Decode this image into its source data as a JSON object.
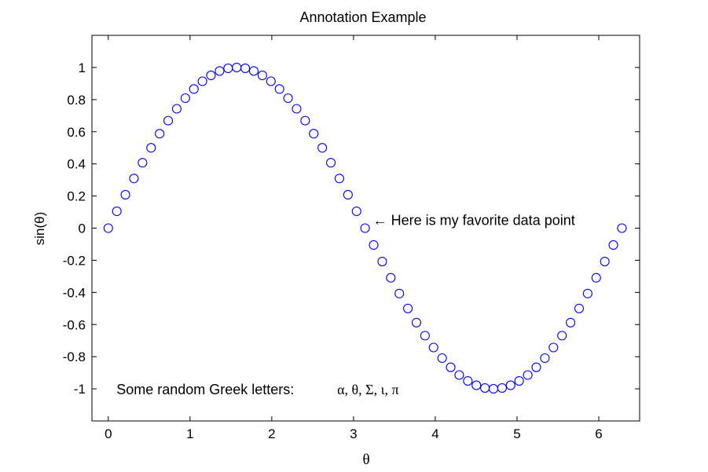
{
  "chart_data": {
    "type": "scatter",
    "title": "Annotation Example",
    "xlabel": "θ",
    "ylabel": "sin(θ)",
    "xlim": [
      -0.2,
      6.5
    ],
    "ylim": [
      -1.2,
      1.2
    ],
    "xticks": [
      "0",
      "1",
      "2",
      "3",
      "4",
      "5",
      "6"
    ],
    "yticks": [
      "-1",
      "-0.8",
      "-0.6",
      "-0.4",
      "-0.2",
      "0",
      "0.2",
      "0.4",
      "0.6",
      "0.8",
      "1"
    ],
    "grid": false,
    "marker": "circle",
    "marker_color": "#0000ff",
    "series": [
      {
        "x": [
          0,
          0.1047,
          0.2094,
          0.3142,
          0.4189,
          0.5236,
          0.6283,
          0.733,
          0.8378,
          0.9425,
          1.0472,
          1.1519,
          1.2566,
          1.3614,
          1.4661,
          1.5708,
          1.6755,
          1.7802,
          1.885,
          1.9897,
          2.0944,
          2.1991,
          2.3038,
          2.4086,
          2.5133,
          2.618,
          2.7227,
          2.8274,
          2.9322,
          3.0369,
          3.1416,
          3.2463,
          3.351,
          3.4558,
          3.5605,
          3.6652,
          3.7699,
          3.8746,
          3.9794,
          4.0841,
          4.1888,
          4.2935,
          4.3982,
          4.5029,
          4.6077,
          4.7124,
          4.8171,
          4.9218,
          5.0265,
          5.1313,
          5.236,
          5.3407,
          5.4454,
          5.5501,
          5.6549,
          5.7596,
          5.8643,
          5.969,
          6.0737,
          6.1785,
          6.2832
        ],
        "y": [
          0.0,
          0.105,
          0.208,
          0.309,
          0.407,
          0.5,
          0.588,
          0.669,
          0.743,
          0.809,
          0.866,
          0.914,
          0.951,
          0.978,
          0.995,
          1.0,
          0.995,
          0.978,
          0.951,
          0.914,
          0.866,
          0.809,
          0.743,
          0.669,
          0.588,
          0.5,
          0.407,
          0.309,
          0.208,
          0.105,
          0.0,
          -0.105,
          -0.208,
          -0.309,
          -0.407,
          -0.5,
          -0.588,
          -0.669,
          -0.743,
          -0.809,
          -0.866,
          -0.914,
          -0.951,
          -0.978,
          -0.995,
          -1.0,
          -0.995,
          -0.978,
          -0.951,
          -0.914,
          -0.866,
          -0.809,
          -0.743,
          -0.669,
          -0.588,
          -0.5,
          -0.407,
          -0.309,
          -0.208,
          -0.105,
          0.0
        ]
      }
    ],
    "annotations": [
      {
        "text": "← Here is my favorite data point",
        "x": 3.1416,
        "y": 0.0
      },
      {
        "text": "Some random Greek letters:",
        "x": 0.1,
        "y": -1.0
      },
      {
        "text": "α, θ, Σ, ɩ, π",
        "x": 2.8,
        "y": -1.0
      }
    ]
  }
}
